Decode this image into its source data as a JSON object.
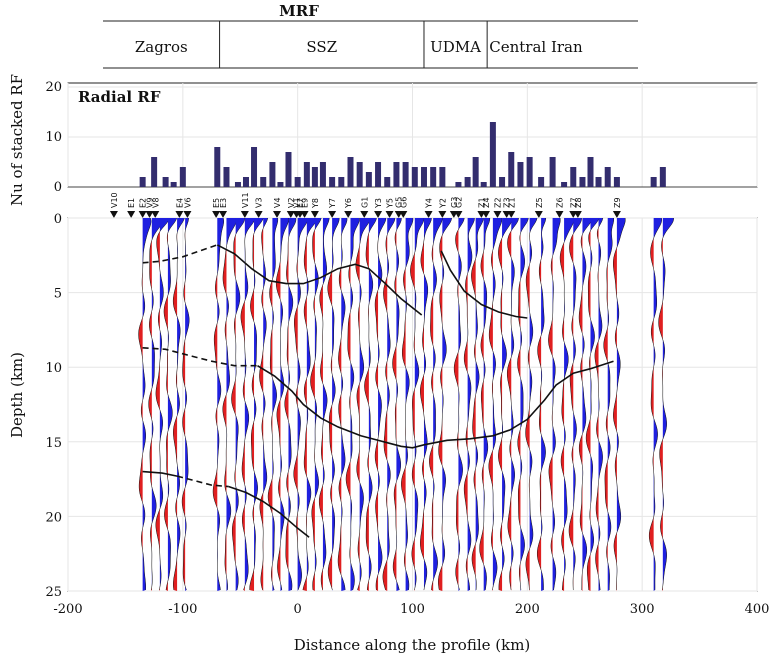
{
  "chart_data": [
    {
      "type": "bar",
      "title": "Radial RF",
      "ylabel": "Nu of stacked RF",
      "xlim": [
        -200,
        400
      ],
      "ylim": [
        0,
        20
      ],
      "yticks": [
        "0",
        "10",
        "20"
      ],
      "bar_color": "#332d6e",
      "x": [
        -135,
        -125,
        -115,
        -108,
        -100,
        -70,
        -62,
        -52,
        -45,
        -38,
        -30,
        -22,
        -15,
        -8,
        0,
        8,
        15,
        22,
        30,
        38,
        46,
        54,
        62,
        70,
        78,
        86,
        94,
        102,
        110,
        118,
        126,
        140,
        148,
        155,
        162,
        170,
        178,
        186,
        194,
        202,
        212,
        222,
        232,
        240,
        248,
        255,
        262,
        270,
        278,
        310,
        318
      ],
      "values": [
        2,
        6,
        2,
        1,
        4,
        8,
        4,
        1,
        2,
        8,
        2,
        5,
        1,
        7,
        2,
        5,
        4,
        5,
        2,
        2,
        6,
        5,
        3,
        5,
        2,
        5,
        5,
        4,
        4,
        4,
        4,
        1,
        2,
        6,
        1,
        13,
        2,
        7,
        5,
        6,
        2,
        6,
        1,
        4,
        2,
        6,
        2,
        4,
        2,
        2,
        4
      ]
    },
    {
      "type": "line",
      "xlabel": "Distance along the profile (km)",
      "ylabel": "Depth (km)",
      "xlim": [
        -200,
        400
      ],
      "ylim": [
        25,
        0
      ],
      "xticks": [
        "-200",
        "-100",
        "0",
        "100",
        "200",
        "300",
        "400"
      ],
      "yticks": [
        "0",
        "5",
        "10",
        "15",
        "20",
        "25"
      ],
      "positive_color": "#1f20e0",
      "negative_color": "#e01f20",
      "trace_x": [
        -135,
        -127,
        -120,
        -113,
        -105,
        -98,
        -70,
        -62,
        -54,
        -46,
        -38,
        -30,
        -22,
        -15,
        -8,
        0,
        8,
        15,
        22,
        30,
        38,
        46,
        54,
        62,
        70,
        78,
        86,
        94,
        102,
        110,
        118,
        126,
        140,
        148,
        155,
        162,
        170,
        178,
        186,
        194,
        202,
        212,
        222,
        232,
        240,
        248,
        255,
        262,
        270,
        278,
        310,
        318
      ],
      "stations": [
        {
          "name": "V10",
          "x": -160
        },
        {
          "name": "E1",
          "x": -145
        },
        {
          "name": "E2",
          "x": -135
        },
        {
          "name": "V9",
          "x": -129
        },
        {
          "name": "V8",
          "x": -124
        },
        {
          "name": "E4",
          "x": -103
        },
        {
          "name": "V6",
          "x": -96
        },
        {
          "name": "E5",
          "x": -71
        },
        {
          "name": "E3",
          "x": -65
        },
        {
          "name": "V11",
          "x": -46
        },
        {
          "name": "V3",
          "x": -34
        },
        {
          "name": "V4",
          "x": -18
        },
        {
          "name": "V2",
          "x": -6
        },
        {
          "name": "V1",
          "x": -1
        },
        {
          "name": "E7",
          "x": 2
        },
        {
          "name": "E9",
          "x": 6
        },
        {
          "name": "Y8",
          "x": 15
        },
        {
          "name": "Y7",
          "x": 30
        },
        {
          "name": "Y6",
          "x": 44
        },
        {
          "name": "G1",
          "x": 58
        },
        {
          "name": "Y3",
          "x": 70
        },
        {
          "name": "Y5",
          "x": 80
        },
        {
          "name": "G5",
          "x": 88
        },
        {
          "name": "G6",
          "x": 92
        },
        {
          "name": "Y4",
          "x": 114
        },
        {
          "name": "Y2",
          "x": 126
        },
        {
          "name": "G3",
          "x": 136
        },
        {
          "name": "G2",
          "x": 140
        },
        {
          "name": "Z1",
          "x": 160
        },
        {
          "name": "Z4",
          "x": 164
        },
        {
          "name": "Z2",
          "x": 174
        },
        {
          "name": "Z3",
          "x": 182
        },
        {
          "name": "Z1",
          "x": 186
        },
        {
          "name": "Z5",
          "x": 210
        },
        {
          "name": "Z6",
          "x": 228
        },
        {
          "name": "Z7",
          "x": 240
        },
        {
          "name": "Z8",
          "x": 244
        },
        {
          "name": "Z9",
          "x": 278
        }
      ],
      "series": [
        {
          "style": "solid",
          "x": [
            -70,
            -55,
            -40,
            -25,
            -10,
            5,
            20,
            35,
            50,
            62,
            75,
            90,
            108
          ],
          "y": [
            1.8,
            2.4,
            3.4,
            4.2,
            4.4,
            4.4,
            4.0,
            3.4,
            3.1,
            3.4,
            4.3,
            5.4,
            6.5
          ]
        },
        {
          "style": "dashed",
          "x": [
            -135,
            -120,
            -100,
            -85,
            -70
          ],
          "y": [
            3.0,
            2.9,
            2.6,
            2.2,
            1.8
          ]
        },
        {
          "style": "solid",
          "x": [
            125,
            133,
            145,
            160,
            175,
            190,
            200
          ],
          "y": [
            2.2,
            3.5,
            4.9,
            5.8,
            6.3,
            6.6,
            6.7
          ]
        },
        {
          "style": "solid",
          "x": [
            -35,
            -20,
            -5,
            5,
            20,
            35,
            55,
            75,
            90,
            100,
            110,
            130,
            150,
            170,
            185,
            200,
            215,
            225,
            240,
            255,
            275
          ],
          "y": [
            9.9,
            10.6,
            11.6,
            12.5,
            13.4,
            14.0,
            14.6,
            15.0,
            15.3,
            15.4,
            15.2,
            14.9,
            14.8,
            14.6,
            14.2,
            13.5,
            12.2,
            11.2,
            10.4,
            10.1,
            9.6
          ]
        },
        {
          "style": "dashed",
          "x": [
            -135,
            -115,
            -95,
            -75,
            -55,
            -35
          ],
          "y": [
            8.7,
            8.8,
            9.2,
            9.6,
            9.9,
            9.9
          ]
        },
        {
          "style": "solid",
          "x": [
            -135,
            -118,
            -105
          ],
          "y": [
            17.0,
            17.1,
            17.3
          ]
        },
        {
          "style": "dashed",
          "x": [
            -105,
            -90,
            -75,
            -60
          ],
          "y": [
            17.3,
            17.6,
            17.9,
            18.0
          ]
        },
        {
          "style": "solid",
          "x": [
            -60,
            -45,
            -30,
            -15,
            0,
            10
          ],
          "y": [
            18.0,
            18.4,
            19.0,
            19.8,
            20.8,
            21.4
          ]
        }
      ]
    }
  ],
  "regions": {
    "top_label": "MRF",
    "zones": [
      {
        "label": "Zagros",
        "x_start": -200,
        "x_end": -68
      },
      {
        "label": "SSZ",
        "x_start": -68,
        "x_end": 110
      },
      {
        "label": "UDMA",
        "x_start": 110,
        "x_end": 165
      },
      {
        "label": "Central Iran",
        "x_start": 165,
        "x_end": 250
      }
    ]
  }
}
